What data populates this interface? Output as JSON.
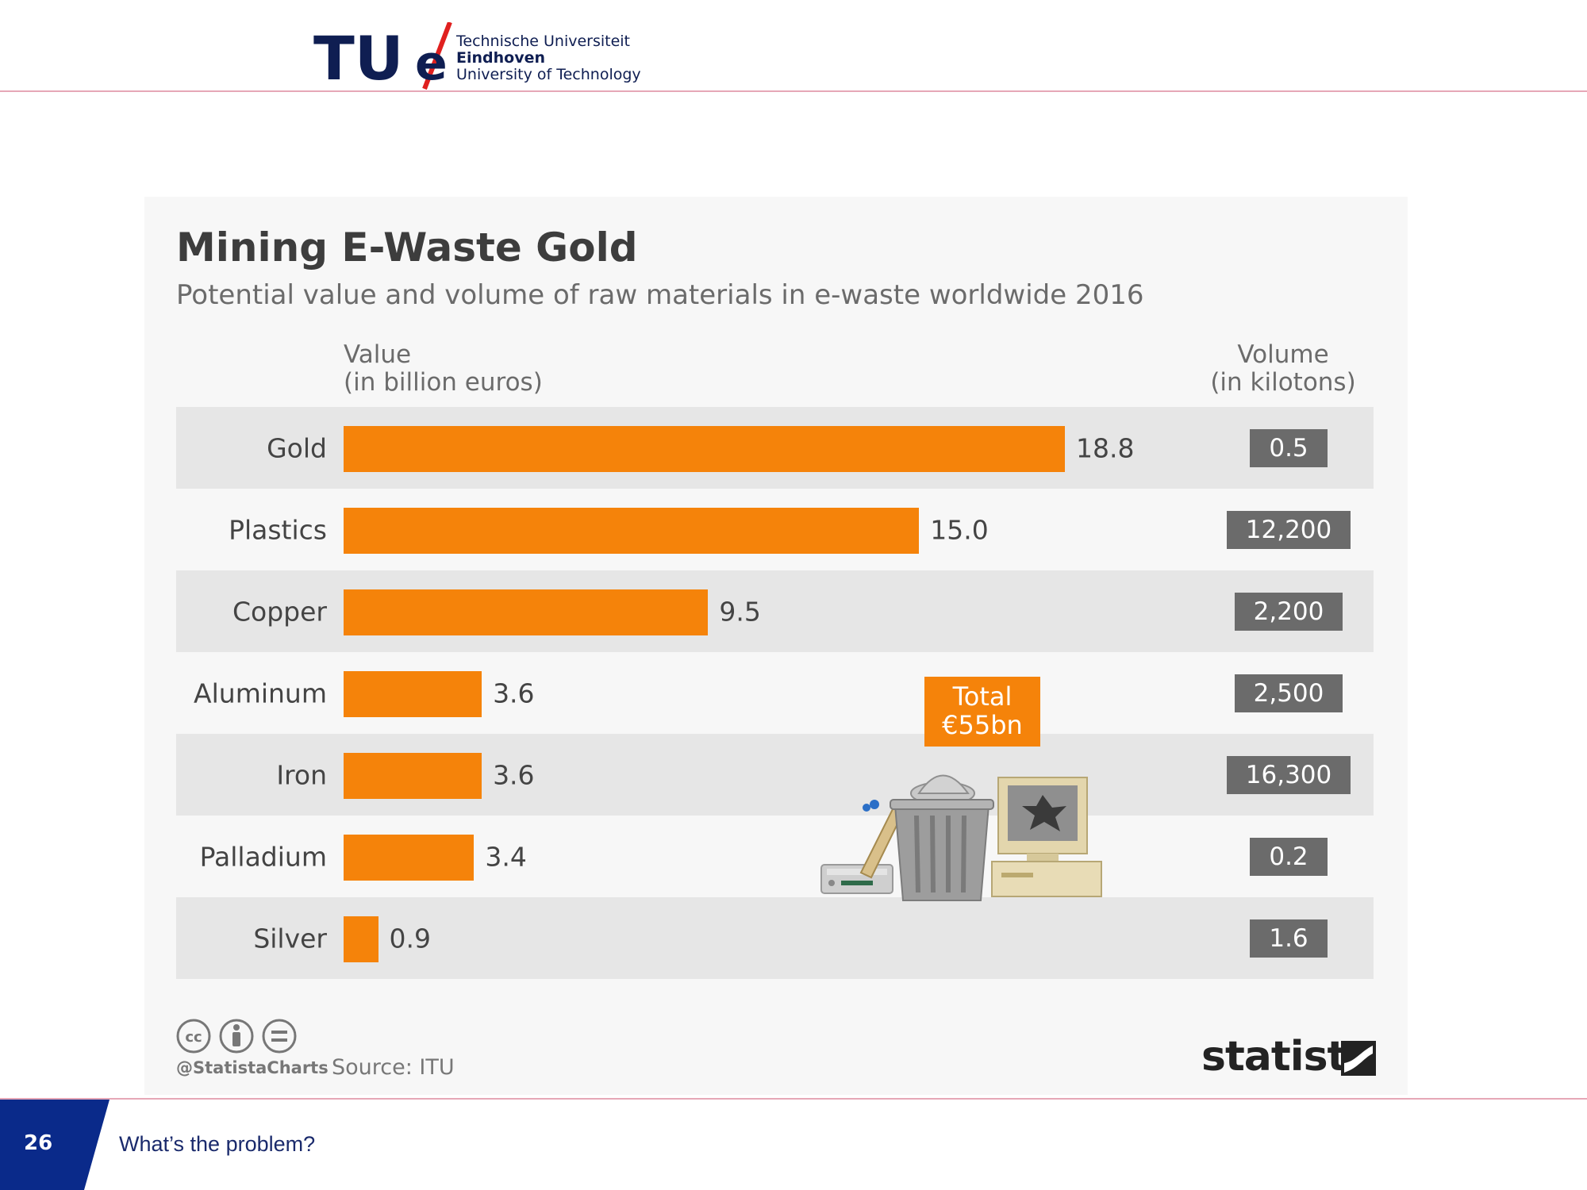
{
  "header": {
    "logo_line1": "Technische Universiteit",
    "logo_line2": "Eindhoven",
    "logo_line3": "University of Technology"
  },
  "chart_data": {
    "type": "bar",
    "title": "Mining E-Waste Gold",
    "subtitle": "Potential value and volume of raw materials in e-waste worldwide 2016",
    "value_header_line1": "Value",
    "value_header_line2": "(in billion euros)",
    "volume_header_line1": "Volume",
    "volume_header_line2": "(in kilotons)",
    "categories": [
      "Gold",
      "Plastics",
      "Copper",
      "Aluminum",
      "Iron",
      "Palladium",
      "Silver"
    ],
    "values": [
      18.8,
      15.0,
      9.5,
      3.6,
      3.6,
      3.4,
      0.9
    ],
    "value_labels": [
      "18.8",
      "15.0",
      "9.5",
      "3.6",
      "3.6",
      "3.4",
      "0.9"
    ],
    "volume_labels": [
      "0.5",
      "12,200",
      "2,200",
      "2,500",
      "16,300",
      "0.2",
      "1.6"
    ],
    "xlim": [
      0,
      18.8
    ],
    "total_line1": "Total",
    "total_line2": "€55bn",
    "bar_color": "#f5830a",
    "volume_box_color": "#6b6b6b",
    "handle": "@StatistaCharts",
    "source": "Source: ITU",
    "brand": "statista"
  },
  "footer": {
    "page_number": "26",
    "title": "What’s the problem?"
  },
  "colors": {
    "tue_blue": "#0f1e52",
    "tue_red": "#e0201f",
    "rule_pink": "#e6a7b7",
    "footer_blue": "#0a2a8a"
  }
}
